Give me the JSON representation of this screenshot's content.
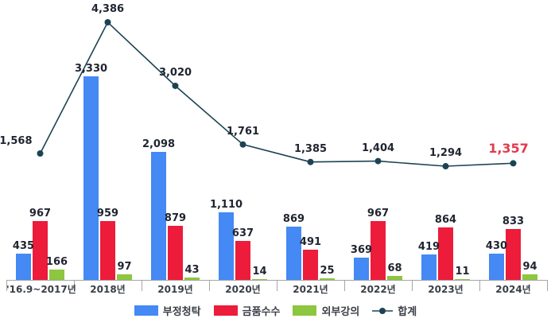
{
  "chart_data": {
    "type": "bar",
    "subtype": "grouped-bars-with-line-overlay",
    "title": "",
    "xlabel": "",
    "ylabel": "",
    "categories": [
      "'16.9~2017년",
      "2018년",
      "2019년",
      "2020년",
      "2021년",
      "2022년",
      "2023년",
      "2024년"
    ],
    "series": [
      {
        "name": "부정청탁",
        "type": "bar",
        "color": "#4489f4",
        "values": [
          435,
          3330,
          2098,
          1110,
          869,
          369,
          419,
          430
        ],
        "labels": [
          "435",
          "3,330",
          "2,098",
          "1,110",
          "869",
          "369",
          "419",
          "430"
        ]
      },
      {
        "name": "금품수수",
        "type": "bar",
        "color": "#ec1c3a",
        "values": [
          967,
          959,
          879,
          637,
          491,
          967,
          864,
          833
        ],
        "labels": [
          "967",
          "959",
          "879",
          "637",
          "491",
          "967",
          "864",
          "833"
        ]
      },
      {
        "name": "외부강의",
        "type": "bar",
        "color": "#8dc63f",
        "values": [
          166,
          97,
          43,
          14,
          25,
          68,
          11,
          94
        ],
        "labels": [
          "166",
          "97",
          "43",
          "14",
          "25",
          "68",
          "11",
          "94"
        ]
      },
      {
        "name": "합계",
        "type": "line",
        "color": "#1c4354",
        "marker": "circle",
        "values": [
          1568,
          4386,
          3020,
          1761,
          1385,
          1404,
          1294,
          1357
        ],
        "labels": [
          "1,568",
          "4,386",
          "3,020",
          "1,761",
          "1,385",
          "1,404",
          "1,294",
          "1,357"
        ],
        "last_label_color": "#e13b4c"
      }
    ],
    "legend": {
      "position": "bottom",
      "entries": [
        "부정청탁",
        "금품수수",
        "외부강의",
        "합계"
      ]
    },
    "layout_hints": {
      "gridlines": false,
      "y_axis_visible": false,
      "x_baseline_visible": true,
      "bar_ylim": [
        0,
        4500
      ],
      "data_labels": "all points labeled",
      "axis_color": "#a6a6a6",
      "label_color": "#1f2430"
    }
  }
}
